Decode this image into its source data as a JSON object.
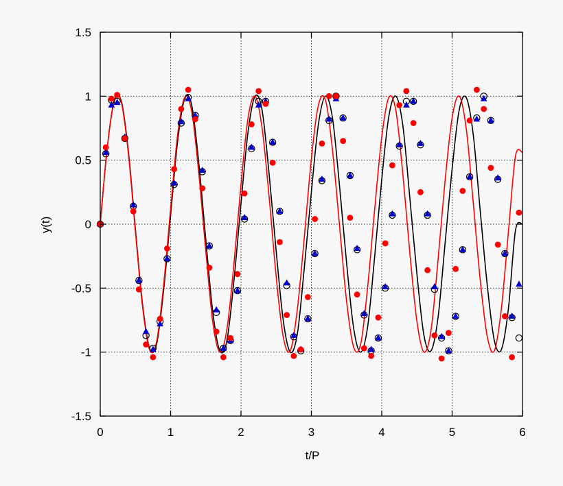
{
  "chart_data": {
    "type": "line",
    "xlabel": "t/P",
    "ylabel": "y(t)",
    "xlim": [
      0,
      6
    ],
    "ylim": [
      -1.5,
      1.5
    ],
    "grid": true,
    "xticks": [
      "0",
      "1",
      "2",
      "3",
      "4",
      "5",
      "6"
    ],
    "yticks": [
      "1.5",
      "1",
      "0.5",
      "0",
      "-0.5",
      "-1",
      "-1.5"
    ],
    "colors": {
      "black": "#000000",
      "red": "#ff0000",
      "blue": "#0000cc",
      "grid": "#333333",
      "background": "#f7f7f7"
    },
    "series": [
      {
        "style": "black-solid-line",
        "x": [
          0,
          0.1,
          0.2,
          0.3,
          0.4,
          0.5,
          0.6,
          0.7,
          0.8,
          0.9,
          1.0,
          1.1,
          1.2,
          1.3,
          1.4,
          1.5,
          1.6,
          1.7,
          1.8,
          1.9,
          2.0,
          2.1,
          2.2,
          2.3,
          2.4,
          2.5,
          2.6,
          2.7,
          2.8,
          2.9,
          3.0,
          3.1,
          3.2,
          3.3,
          3.4,
          3.5,
          3.6,
          3.7,
          3.8,
          3.9,
          4.0,
          4.1,
          4.2,
          4.3,
          4.4,
          4.5,
          4.6,
          4.7,
          4.8,
          4.9,
          5.0,
          5.1,
          5.2,
          5.3,
          5.4,
          5.5,
          5.6,
          5.7,
          5.8,
          5.9,
          6.0
        ],
        "y": [
          0,
          0.6,
          0.96,
          0.96,
          0.57,
          -0.04,
          -0.62,
          -0.97,
          -0.94,
          -0.52,
          0.07,
          0.65,
          0.98,
          0.93,
          0.48,
          -0.12,
          -0.69,
          -0.99,
          -0.91,
          -0.44,
          0.16,
          0.72,
          1.0,
          0.89,
          0.39,
          -0.21,
          -0.75,
          -1.0,
          -0.86,
          -0.34,
          0.25,
          0.78,
          1.0,
          0.83,
          0.3,
          -0.3,
          -0.81,
          -1.0,
          -0.8,
          -0.25,
          0.35,
          0.84,
          1.0,
          0.77,
          0.2,
          -0.39,
          -0.87,
          -0.99,
          -0.73,
          -0.15,
          0.43,
          0.89,
          0.99,
          0.7,
          0.1,
          -0.48,
          -0.91,
          -0.98,
          -0.66,
          -0.05,
          0.0
        ]
      },
      {
        "style": "red-solid-line",
        "x": [
          0,
          0.1,
          0.2,
          0.3,
          0.4,
          0.5,
          0.6,
          0.7,
          0.8,
          0.9,
          1.0,
          1.1,
          1.2,
          1.3,
          1.4,
          1.5,
          1.6,
          1.7,
          1.8,
          1.9,
          2.0,
          2.1,
          2.2,
          2.3,
          2.4,
          2.5,
          2.6,
          2.7,
          2.8,
          2.9,
          3.0,
          3.1,
          3.2,
          3.3,
          3.4,
          3.5,
          3.6,
          3.7,
          3.8,
          3.9,
          4.0,
          4.1,
          4.2,
          4.3,
          4.4,
          4.5,
          4.6,
          4.7,
          4.8,
          4.9,
          5.0,
          5.1,
          5.2,
          5.3,
          5.4,
          5.5,
          5.6,
          5.7,
          5.8,
          5.9,
          6.0
        ],
        "y": [
          0,
          0.6,
          0.97,
          0.95,
          0.55,
          -0.06,
          -0.64,
          -0.98,
          -0.92,
          -0.48,
          0.12,
          0.7,
          0.99,
          0.88,
          0.4,
          -0.21,
          -0.77,
          -1.0,
          -0.82,
          -0.31,
          0.31,
          0.83,
          1.0,
          0.75,
          0.21,
          -0.41,
          -0.88,
          -0.99,
          -0.67,
          -0.1,
          0.51,
          0.93,
          0.97,
          0.58,
          -0.01,
          -0.6,
          -0.96,
          -0.94,
          -0.49,
          0.12,
          0.68,
          0.99,
          0.89,
          0.39,
          -0.23,
          -0.76,
          -1.0,
          -0.83,
          -0.28,
          0.34,
          0.83,
          1.0,
          0.75,
          0.17,
          -0.44,
          -0.88,
          -0.99,
          -0.66,
          -0.06,
          0.53,
          0.56
        ]
      },
      {
        "style": "black-open-circle-markers",
        "x": [
          0,
          0.08,
          0.16,
          0.24,
          0.35,
          0.47,
          0.55,
          0.65,
          0.75,
          0.85,
          0.95,
          1.05,
          1.15,
          1.25,
          1.35,
          1.45,
          1.55,
          1.65,
          1.75,
          1.85,
          1.95,
          2.05,
          2.15,
          2.25,
          2.35,
          2.45,
          2.55,
          2.65,
          2.75,
          2.85,
          2.95,
          3.05,
          3.15,
          3.25,
          3.35,
          3.45,
          3.55,
          3.65,
          3.75,
          3.85,
          3.95,
          4.05,
          4.15,
          4.25,
          4.35,
          4.45,
          4.55,
          4.65,
          4.75,
          4.85,
          4.95,
          5.05,
          5.15,
          5.25,
          5.35,
          5.45,
          5.55,
          5.65,
          5.75,
          5.85,
          5.95
        ],
        "y": [
          0,
          0.55,
          0.97,
          0.96,
          0.67,
          0.14,
          -0.44,
          -0.87,
          -0.97,
          -0.76,
          -0.27,
          0.31,
          0.79,
          0.99,
          0.85,
          0.41,
          -0.17,
          -0.69,
          -0.97,
          -0.91,
          -0.52,
          0.04,
          0.59,
          0.96,
          0.96,
          0.64,
          0.1,
          -0.48,
          -0.88,
          -0.99,
          -0.74,
          -0.23,
          0.34,
          0.81,
          1.0,
          0.83,
          0.38,
          -0.2,
          -0.71,
          -0.99,
          -0.89,
          -0.5,
          0.07,
          0.61,
          0.96,
          0.96,
          0.62,
          0.07,
          -0.51,
          -0.89,
          -0.99,
          -0.72,
          -0.2,
          0.37,
          0.83,
          1.0,
          0.81,
          0.35,
          -0.23,
          -0.73,
          -0.89
        ]
      },
      {
        "style": "blue-triangle-markers",
        "x": [
          0,
          0.08,
          0.16,
          0.24,
          0.35,
          0.47,
          0.55,
          0.65,
          0.75,
          0.85,
          0.95,
          1.05,
          1.15,
          1.25,
          1.35,
          1.45,
          1.55,
          1.65,
          1.75,
          1.85,
          1.95,
          2.05,
          2.15,
          2.25,
          2.35,
          2.45,
          2.55,
          2.65,
          2.75,
          2.85,
          2.95,
          3.05,
          3.15,
          3.25,
          3.35,
          3.45,
          3.55,
          3.65,
          3.75,
          3.85,
          3.95,
          4.05,
          4.15,
          4.25,
          4.35,
          4.45,
          4.55,
          4.65,
          4.75,
          4.85,
          4.95,
          5.05,
          5.15,
          5.25,
          5.35,
          5.45,
          5.55,
          5.65,
          5.75,
          5.85,
          5.95
        ],
        "y": [
          0,
          0.56,
          0.93,
          0.95,
          0.68,
          0.15,
          -0.44,
          -0.84,
          -0.98,
          -0.78,
          -0.27,
          0.32,
          0.8,
          0.98,
          0.85,
          0.42,
          -0.17,
          -0.67,
          -0.97,
          -0.91,
          -0.52,
          0.05,
          0.6,
          0.93,
          0.96,
          0.64,
          0.1,
          -0.46,
          -0.87,
          -0.98,
          -0.74,
          -0.23,
          0.35,
          0.82,
          0.98,
          0.83,
          0.38,
          -0.19,
          -0.7,
          -0.98,
          -0.89,
          -0.49,
          0.08,
          0.62,
          0.93,
          0.96,
          0.63,
          0.08,
          -0.49,
          -0.88,
          -0.99,
          -0.72,
          -0.2,
          0.37,
          0.82,
          0.98,
          0.81,
          0.36,
          -0.23,
          -0.72,
          -0.47
        ]
      },
      {
        "style": "red-filled-circle-markers",
        "x": [
          0,
          0.08,
          0.16,
          0.24,
          0.35,
          0.47,
          0.55,
          0.65,
          0.75,
          0.85,
          0.95,
          1.05,
          1.15,
          1.25,
          1.35,
          1.45,
          1.55,
          1.65,
          1.75,
          1.85,
          1.95,
          2.05,
          2.15,
          2.25,
          2.35,
          2.45,
          2.55,
          2.65,
          2.75,
          2.85,
          2.95,
          3.05,
          3.15,
          3.25,
          3.35,
          3.45,
          3.55,
          3.65,
          3.75,
          3.85,
          3.95,
          4.05,
          4.15,
          4.25,
          4.35,
          4.45,
          4.55,
          4.65,
          4.75,
          4.85,
          4.95,
          5.05,
          5.15,
          5.25,
          5.35,
          5.45,
          5.55,
          5.65,
          5.75,
          5.85,
          5.95
        ],
        "y": [
          0,
          0.6,
          0.98,
          1.01,
          0.67,
          0.1,
          -0.51,
          -0.94,
          -1.04,
          -0.74,
          -0.19,
          0.43,
          0.9,
          1.05,
          0.82,
          0.28,
          -0.34,
          -0.84,
          -1.04,
          -0.89,
          -0.39,
          0.24,
          0.78,
          1.04,
          0.94,
          0.48,
          -0.14,
          -0.71,
          -1.03,
          -0.98,
          -0.57,
          0.04,
          0.63,
          1.0,
          1.0,
          0.65,
          0.05,
          -0.55,
          -0.97,
          -1.03,
          -0.73,
          -0.15,
          0.46,
          0.93,
          1.04,
          0.79,
          0.25,
          -0.36,
          -0.87,
          -1.05,
          -0.85,
          -0.35,
          0.26,
          0.81,
          1.05,
          0.9,
          0.44,
          -0.16,
          -0.72,
          -1.04,
          0.09
        ]
      }
    ]
  }
}
